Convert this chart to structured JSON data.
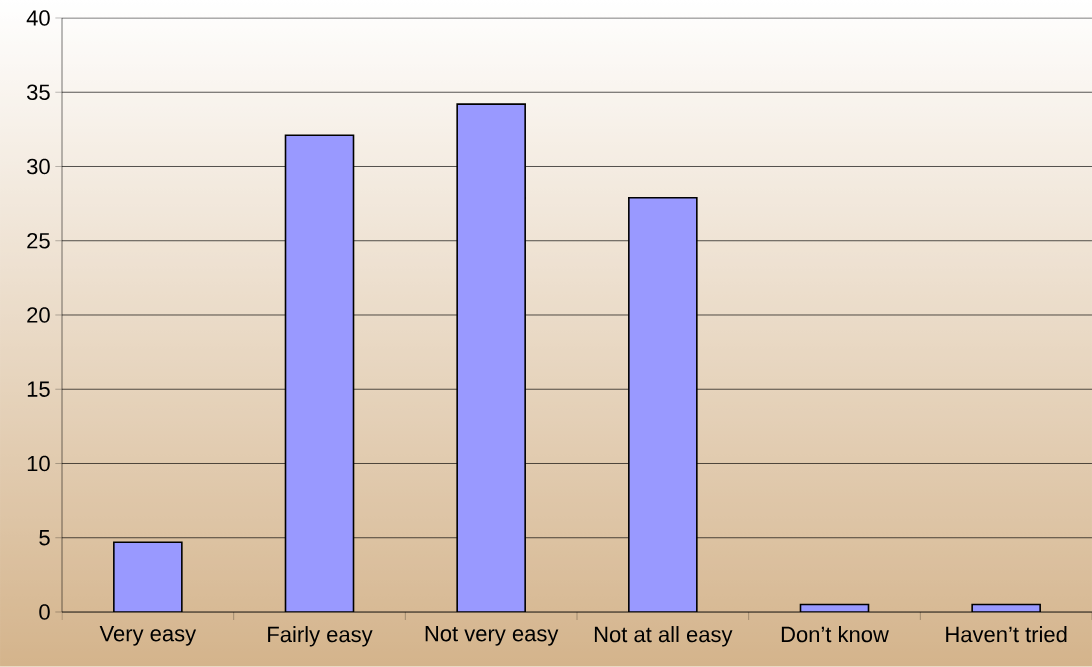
{
  "chart_data": {
    "type": "bar",
    "categories": [
      "Very easy",
      "Fairly easy",
      "Not very easy",
      "Not at all easy",
      "Don’t know",
      "Haven’t tried"
    ],
    "values": [
      4.7,
      32.1,
      34.2,
      27.9,
      0.5,
      0.5
    ],
    "color": "#9999ff",
    "ylim": [
      0,
      40
    ],
    "yticks": [
      0,
      5,
      10,
      15,
      20,
      25,
      30,
      35,
      40
    ],
    "grid": "y"
  }
}
